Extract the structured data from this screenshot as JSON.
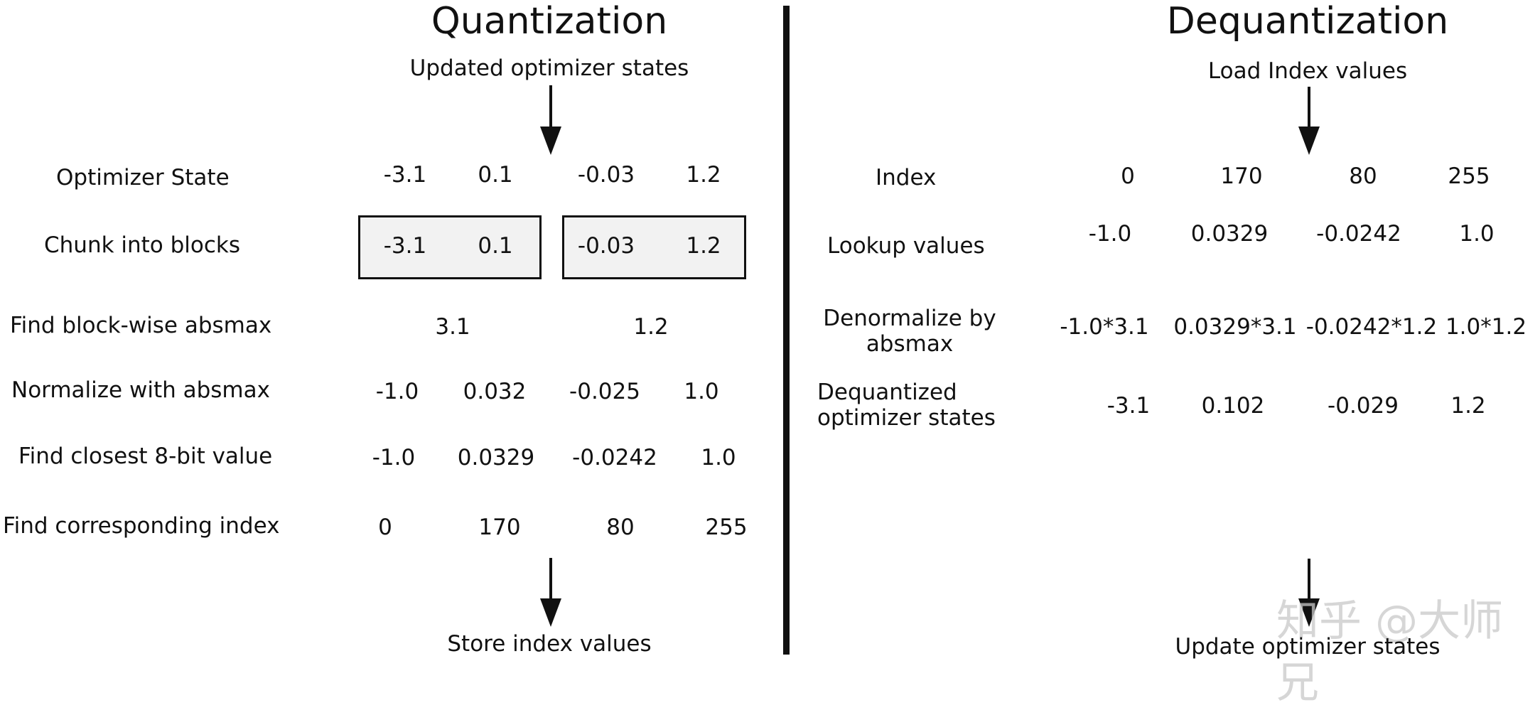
{
  "quantization": {
    "title": "Quantization",
    "input_label": "Updated optimizer states",
    "output_label": "Store index values",
    "rows": {
      "optimizer_state": {
        "label": "Optimizer State",
        "values": [
          "-3.1",
          "0.1",
          "-0.03",
          "1.2"
        ]
      },
      "chunk": {
        "label": "Chunk into blocks",
        "blocks": [
          [
            "-3.1",
            "0.1"
          ],
          [
            "-0.03",
            "1.2"
          ]
        ]
      },
      "absmax": {
        "label": "Find block-wise absmax",
        "values": [
          "3.1",
          "1.2"
        ]
      },
      "normalize": {
        "label": "Normalize with absmax",
        "values": [
          "-1.0",
          "0.032",
          "-0.025",
          "1.0"
        ]
      },
      "closest": {
        "label": "Find closest 8-bit value",
        "values": [
          "-1.0",
          "0.0329",
          "-0.0242",
          "1.0"
        ]
      },
      "index": {
        "label": "Find corresponding index",
        "values": [
          "0",
          "170",
          "80",
          "255"
        ]
      }
    }
  },
  "dequantization": {
    "title": "Dequantization",
    "input_label": "Load Index values",
    "output_label": "Update optimizer states",
    "rows": {
      "index": {
        "label": "Index",
        "values": [
          "0",
          "170",
          "80",
          "255"
        ]
      },
      "lookup": {
        "label": "Lookup values",
        "values": [
          "-1.0",
          "0.0329",
          "-0.0242",
          "1.0"
        ]
      },
      "denormalize": {
        "label_line1": "Denormalize by",
        "label_line2": "absmax",
        "values": [
          "-1.0*3.1",
          "0.0329*3.1",
          "-0.0242*1.2",
          "1.0*1.2"
        ]
      },
      "dequantized": {
        "label_line1": "Dequantized",
        "label_line2": "optimizer states",
        "values": [
          "-3.1",
          "0.102",
          "-0.029",
          "1.2"
        ]
      }
    }
  },
  "watermark": "知乎 @大师兄"
}
